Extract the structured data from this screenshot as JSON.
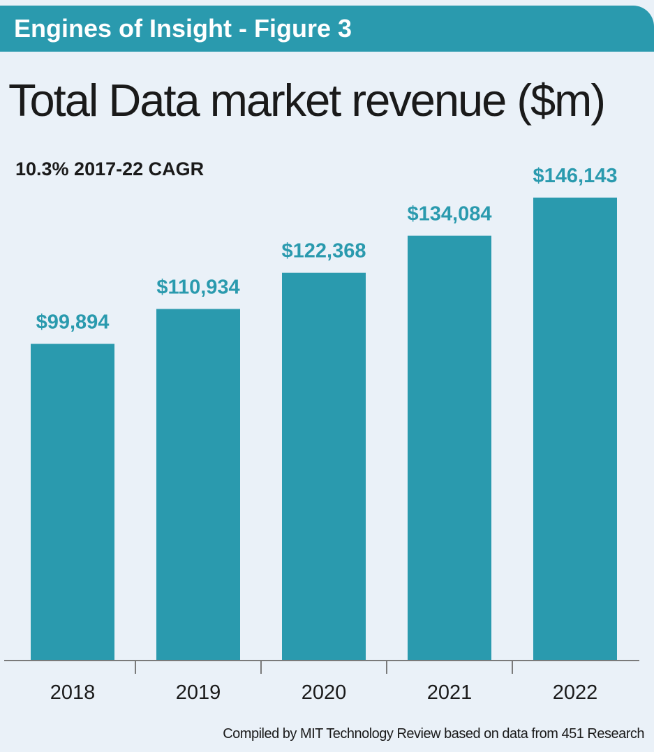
{
  "header": {
    "banner": "Engines of Insight - Figure 3"
  },
  "chart_data": {
    "type": "bar",
    "title": "Total Data market revenue ($m)",
    "subtitle": "10.3% 2017-22 CAGR",
    "categories": [
      "2018",
      "2019",
      "2020",
      "2021",
      "2022"
    ],
    "values": [
      99894,
      110934,
      122368,
      134084,
      146143
    ],
    "data_labels": [
      "$99,894",
      "$110,934",
      "$122,368",
      "$134,084",
      "$146,143"
    ],
    "xlabel": "",
    "ylabel": "",
    "grid": false,
    "legend": "none",
    "bar_color": "#2a9aae",
    "label_color": "#2a9aae"
  },
  "footer": {
    "source": "Compiled by MIT Technology Review based on data from 451 Research"
  },
  "colors": {
    "background": "#eaf1f8",
    "accent": "#2a9aae",
    "text": "#1a1a1a",
    "axis": "#7a7a7a"
  }
}
